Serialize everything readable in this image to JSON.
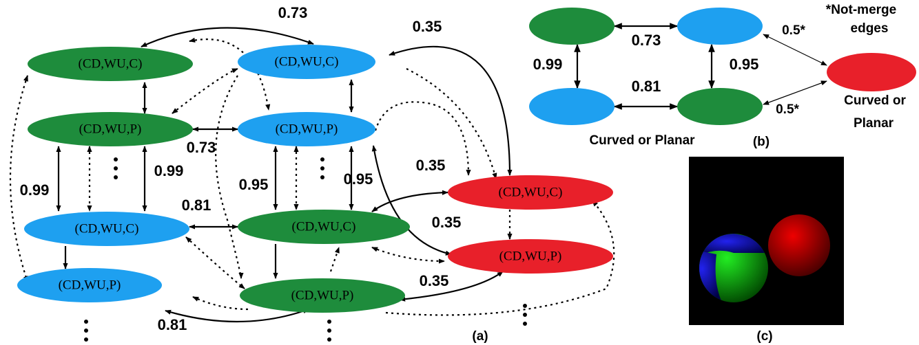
{
  "panel_a": {
    "nodes": [
      "(CD,WU,C)",
      "(CD,WU,P)",
      "(CD,WU,C)",
      "(CD,WU,P)",
      "(CD,WU,C)",
      "(CD,WU,P)",
      "(CD,WU,C)",
      "(CD,WU,P)",
      "(CD,WU,C)",
      "(CD,WU,P)"
    ],
    "edge_labels": [
      "0.73",
      "0.35",
      "0.73",
      "0.99",
      "0.99",
      "0.95",
      "0.95",
      "0.81",
      "0.35",
      "0.35",
      "0.35",
      "0.81"
    ],
    "caption": "(a)"
  },
  "panel_b": {
    "edge_labels": [
      "0.73",
      "0.99",
      "0.95",
      "0.81",
      "0.5*",
      "0.5*"
    ],
    "note": [
      "*Not-merge",
      "edges"
    ],
    "group_label": "Curved or Planar",
    "red_label": [
      "Curved or",
      "Planar"
    ],
    "caption": "(b)"
  },
  "panel_c": {
    "caption": "(c)"
  }
}
